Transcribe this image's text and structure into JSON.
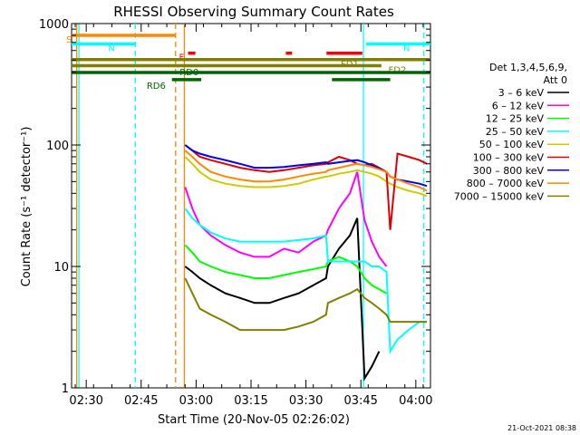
{
  "chart_data": {
    "type": "line",
    "title": "RHESSI Observing Summary Count Rates",
    "xlabel": "Start Time (20-Nov-05 02:26:02)",
    "ylabel": "Count Rate (s⁻¹ detector⁻¹)",
    "yscale": "log",
    "ylim": [
      1,
      1000
    ],
    "xlim_minutes": [
      0,
      98
    ],
    "y_ticks": [
      {
        "value": 1,
        "label": "1"
      },
      {
        "value": 10,
        "label": "10"
      },
      {
        "value": 100,
        "label": "100"
      },
      {
        "value": 1000,
        "label": "1000"
      }
    ],
    "x_ticks": [
      {
        "minute": 4,
        "label": "02:30"
      },
      {
        "minute": 19,
        "label": "02:45"
      },
      {
        "minute": 34,
        "label": "03:00"
      },
      {
        "minute": 49,
        "label": "03:15"
      },
      {
        "minute": 64,
        "label": "03:30"
      },
      {
        "minute": 79,
        "label": "03:45"
      },
      {
        "minute": 94,
        "label": "04:00"
      }
    ],
    "date_stamp": "21-Oct-2021 08:38",
    "legend": {
      "header": [
        "Det 1,3,4,5,6,9,",
        "Att 0"
      ],
      "entries": [
        {
          "label": "3 – 6 keV",
          "color": "#000000"
        },
        {
          "label": "6 – 12 keV",
          "color": "#ff00ff"
        },
        {
          "label": "12 – 25 keV",
          "color": "#00ff00"
        },
        {
          "label": "25 – 50 keV",
          "color": "#00ffff"
        },
        {
          "label": "50 – 100 keV",
          "color": "#cccc00"
        },
        {
          "label": "100 – 300 keV",
          "color": "#dd0000"
        },
        {
          "label": "300 – 800 keV",
          "color": "#0000ee"
        },
        {
          "label": "800 – 7000 keV",
          "color": "#ff8800"
        },
        {
          "label": "7000 – 15000 keV",
          "color": "#808000"
        }
      ]
    },
    "flag_bars": [
      {
        "label": "S",
        "color": "#ff8800",
        "start": 0,
        "end": 28.4,
        "level": 800
      },
      {
        "label": "N",
        "color": "#00ffff",
        "start": 0,
        "end": 17.4,
        "level": 680
      },
      {
        "label": "N",
        "color": "#00ffff",
        "start": 80.4,
        "end": 98,
        "level": 680
      },
      {
        "label": "F",
        "color": "#ff0000",
        "start": 31.8,
        "end": 33.8,
        "level": 570
      },
      {
        "label": "",
        "color": "#ff0000",
        "start": 58.5,
        "end": 60.2,
        "level": 570
      },
      {
        "label": "",
        "color": "#ff0000",
        "start": 69.6,
        "end": 79.4,
        "level": 570
      },
      {
        "label": "FD1",
        "color": "#808000",
        "start": 0,
        "end": 98,
        "level": 505
      },
      {
        "label": "FD2",
        "color": "#808000",
        "start": 0,
        "end": 84.6,
        "level": 450
      },
      {
        "label": "RD0",
        "color": "#006400",
        "start": 0,
        "end": 98,
        "level": 395
      },
      {
        "label": "RD6",
        "color": "#006400",
        "start": 27.4,
        "end": 35.4,
        "level": 345
      },
      {
        "label": "",
        "color": "#006400",
        "start": 71.1,
        "end": 87,
        "level": 345
      }
    ],
    "vertical_markers": [
      {
        "minute": 1.4,
        "color": "#ff8800",
        "style": "solid"
      },
      {
        "minute": 2.0,
        "color": "#00ffff",
        "style": "solid"
      },
      {
        "minute": 17.4,
        "color": "#00ffff",
        "style": "dashed"
      },
      {
        "minute": 28.4,
        "color": "#ff8800",
        "style": "dashed"
      },
      {
        "minute": 30.8,
        "color": "#ff8800",
        "style": "solid"
      },
      {
        "minute": 79.7,
        "color": "#00ffff",
        "style": "solid"
      },
      {
        "minute": 96.2,
        "color": "#00ffff",
        "style": "dashed"
      }
    ],
    "x_minutes": [
      31,
      33,
      35,
      38,
      42,
      46,
      50,
      54,
      58,
      62,
      66,
      69.5,
      70,
      73,
      76,
      78,
      80,
      82,
      84,
      86,
      87,
      89,
      92,
      95,
      97
    ],
    "series": [
      {
        "name": "3 - 6 keV",
        "color": "#000000",
        "values": [
          10,
          9,
          8,
          7,
          6,
          5.5,
          5,
          5,
          5.5,
          6,
          7,
          8,
          10,
          14,
          18,
          25,
          1.2,
          1.5,
          2,
          null,
          null,
          null,
          null,
          null,
          null
        ]
      },
      {
        "name": "6 - 12 keV",
        "color": "#ff00ff",
        "values": [
          45,
          30,
          22,
          18,
          15,
          13,
          12,
          12,
          14,
          13,
          16,
          18,
          20,
          30,
          40,
          60,
          24,
          16,
          12,
          10,
          null,
          null,
          null,
          null,
          null
        ]
      },
      {
        "name": "12 - 25 keV",
        "color": "#00ff00",
        "values": [
          15,
          13,
          11,
          10,
          9,
          8.5,
          8,
          8,
          8.5,
          9,
          9.5,
          10,
          11,
          12,
          11,
          10,
          8,
          7,
          6.5,
          6,
          null,
          null,
          null,
          null,
          null
        ]
      },
      {
        "name": "25 - 50 keV",
        "color": "#00ffff",
        "values": [
          30,
          25,
          22,
          19,
          17,
          16,
          16,
          16,
          16,
          16.5,
          17,
          18,
          11,
          11,
          11,
          11,
          11,
          10,
          10,
          9,
          2,
          2.5,
          3,
          3.5,
          3.5
        ]
      },
      {
        "name": "50 - 100 keV",
        "color": "#cccc00",
        "values": [
          80,
          70,
          60,
          52,
          48,
          46,
          45,
          45,
          46,
          48,
          52,
          55,
          55,
          58,
          60,
          62,
          60,
          58,
          55,
          50,
          48,
          45,
          42,
          40,
          38
        ]
      },
      {
        "name": "100 - 300 keV",
        "color": "#dd0000",
        "values": [
          100,
          90,
          80,
          75,
          70,
          65,
          62,
          60,
          62,
          65,
          68,
          70,
          72,
          80,
          75,
          70,
          68,
          70,
          65,
          60,
          20,
          85,
          80,
          75,
          70
        ]
      },
      {
        "name": "300 - 800 keV",
        "color": "#0000ee",
        "values": [
          100,
          90,
          85,
          80,
          75,
          70,
          65,
          65,
          66,
          68,
          70,
          72,
          70,
          72,
          74,
          75,
          72,
          68,
          64,
          60,
          55,
          52,
          50,
          48,
          46
        ]
      },
      {
        "name": "800 - 7000 keV",
        "color": "#ff8800",
        "values": [
          90,
          80,
          70,
          60,
          55,
          52,
          50,
          50,
          52,
          55,
          58,
          60,
          62,
          65,
          68,
          70,
          68,
          66,
          63,
          60,
          55,
          52,
          48,
          45,
          42
        ]
      },
      {
        "name": "7000 - 15000 keV",
        "color": "#808000",
        "values": [
          8,
          6,
          4.5,
          4,
          3.5,
          3,
          3,
          3,
          3,
          3.2,
          3.5,
          4,
          5,
          5.5,
          6,
          6.5,
          5.5,
          5,
          4.5,
          4,
          3.5,
          3.5,
          3.5,
          3.5,
          3.5
        ]
      }
    ]
  }
}
